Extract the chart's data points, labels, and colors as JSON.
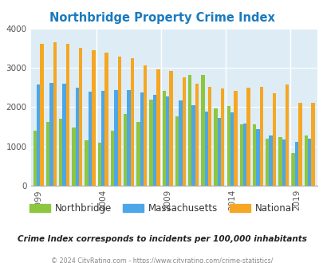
{
  "title": "Northbridge Property Crime Index",
  "years": [
    1999,
    2000,
    2001,
    2002,
    2003,
    2004,
    2005,
    2006,
    2007,
    2008,
    2009,
    2010,
    2011,
    2012,
    2013,
    2014,
    2015,
    2016,
    2017,
    2018,
    2019,
    2020
  ],
  "northbridge_values": [
    1400,
    1620,
    1700,
    1470,
    1160,
    1100,
    1400,
    1820,
    1630,
    2200,
    2420,
    1770,
    2820,
    2830,
    1970,
    2030,
    1560,
    1560,
    1200,
    1230,
    820,
    1280
  ],
  "massachusetts_values": [
    2580,
    2630,
    2600,
    2490,
    2390,
    2410,
    2430,
    2430,
    2380,
    2320,
    2280,
    2170,
    2060,
    1880,
    1720,
    1870,
    1580,
    1440,
    1280,
    1180,
    1120,
    1190
  ],
  "national_values": [
    3620,
    3660,
    3620,
    3510,
    3460,
    3390,
    3290,
    3250,
    3060,
    2960,
    2930,
    2760,
    2610,
    2510,
    2470,
    2420,
    2490,
    2510,
    2360,
    2580,
    2110,
    2110
  ],
  "color_northbridge": "#8dc63f",
  "color_massachusetts": "#4da6e8",
  "color_national": "#f5a623",
  "bg_color": "#deedf5",
  "title_color": "#1a7abf",
  "subtitle": "Crime Index corresponds to incidents per 100,000 inhabitants",
  "footer": "© 2024 CityRating.com - https://www.cityrating.com/crime-statistics/",
  "ylim": [
    0,
    4000
  ],
  "yticks": [
    0,
    1000,
    2000,
    3000,
    4000
  ],
  "xtick_years": [
    1999,
    2004,
    2009,
    2014,
    2019
  ]
}
